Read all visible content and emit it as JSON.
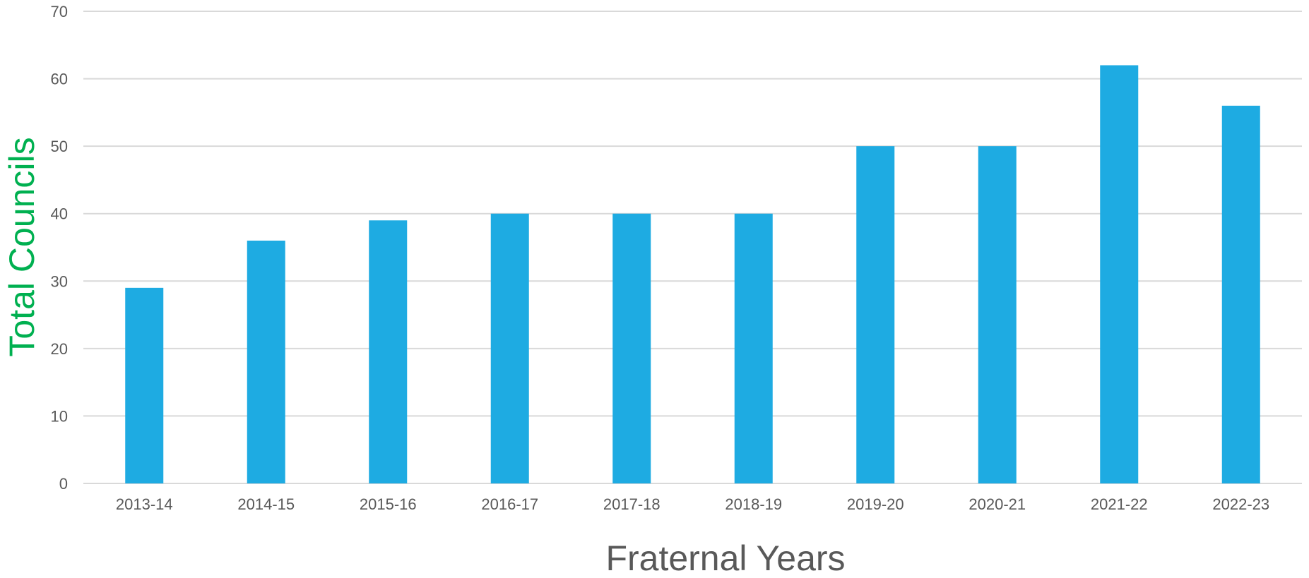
{
  "chart_data": {
    "type": "bar",
    "categories": [
      "2013-14",
      "2014-15",
      "2015-16",
      "2016-17",
      "2017-18",
      "2018-19",
      "2019-20",
      "2020-21",
      "2021-22",
      "2022-23"
    ],
    "values": [
      29,
      36,
      39,
      40,
      40,
      40,
      50,
      50,
      62,
      56
    ],
    "xlabel": "Fraternal Years",
    "ylabel": "Total Councils",
    "ylim": [
      0,
      70
    ],
    "yticks": [
      0,
      10,
      20,
      30,
      40,
      50,
      60,
      70
    ],
    "grid": true,
    "legend": "none",
    "colors": {
      "bar": "#1eabe2",
      "gridline": "#d9d9d9",
      "tick_text": "#595959",
      "ylabel_text": "#00b050",
      "xlabel_text": "#595959"
    }
  }
}
